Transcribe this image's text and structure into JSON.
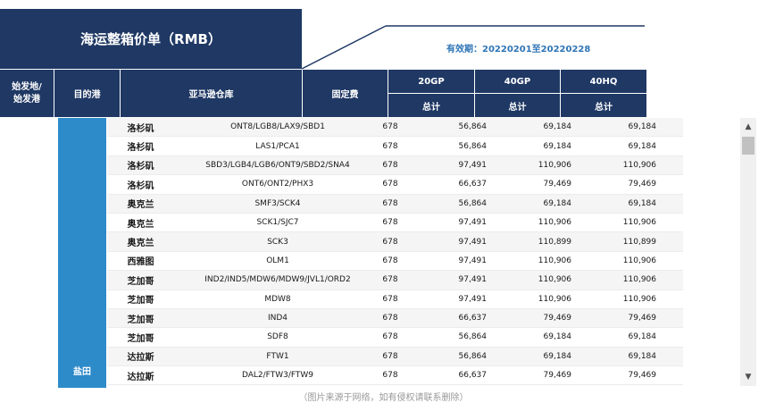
{
  "header": {
    "title": "海运整箱价单（RMB）",
    "validity": "有效期：20220201至20220228"
  },
  "columns": {
    "origin": "始发地/\n始发港",
    "dest": "目的港",
    "warehouse": "亚马逊仓库",
    "fixed": "固定费",
    "gp20": "20GP",
    "gp40": "40GP",
    "hq40": "40HQ",
    "total": "总计"
  },
  "origin_port": "盐田",
  "rows": [
    {
      "dest": "洛杉矶",
      "warehouse": "ONT8/LGB8/LAX9/SBD1",
      "fixed": "678",
      "gp20": "56,864",
      "gp40": "69,184",
      "hq40": "69,184"
    },
    {
      "dest": "洛杉矶",
      "warehouse": "LAS1/PCA1",
      "fixed": "678",
      "gp20": "56,864",
      "gp40": "69,184",
      "hq40": "69,184"
    },
    {
      "dest": "洛杉矶",
      "warehouse": "SBD3/LGB4/LGB6/ONT9/SBD2/SNA4",
      "fixed": "678",
      "gp20": "97,491",
      "gp40": "110,906",
      "hq40": "110,906"
    },
    {
      "dest": "洛杉矶",
      "warehouse": "ONT6/ONT2/PHX3",
      "fixed": "678",
      "gp20": "66,637",
      "gp40": "79,469",
      "hq40": "79,469"
    },
    {
      "dest": "奥克兰",
      "warehouse": "SMF3/SCK4",
      "fixed": "678",
      "gp20": "56,864",
      "gp40": "69,184",
      "hq40": "69,184"
    },
    {
      "dest": "奥克兰",
      "warehouse": "SCK1/SJC7",
      "fixed": "678",
      "gp20": "97,491",
      "gp40": "110,906",
      "hq40": "110,906"
    },
    {
      "dest": "奥克兰",
      "warehouse": "SCK3",
      "fixed": "678",
      "gp20": "97,491",
      "gp40": "110,899",
      "hq40": "110,899"
    },
    {
      "dest": "西雅图",
      "warehouse": "OLM1",
      "fixed": "678",
      "gp20": "97,491",
      "gp40": "110,906",
      "hq40": "110,906"
    },
    {
      "dest": "芝加哥",
      "warehouse": "IND2/IND5/MDW6/MDW9/JVL1/ORD2",
      "fixed": "678",
      "gp20": "97,491",
      "gp40": "110,906",
      "hq40": "110,906"
    },
    {
      "dest": "芝加哥",
      "warehouse": "MDW8",
      "fixed": "678",
      "gp20": "97,491",
      "gp40": "110,906",
      "hq40": "110,906"
    },
    {
      "dest": "芝加哥",
      "warehouse": "IND4",
      "fixed": "678",
      "gp20": "66,637",
      "gp40": "79,469",
      "hq40": "79,469"
    },
    {
      "dest": "芝加哥",
      "warehouse": "SDF8",
      "fixed": "678",
      "gp20": "56,864",
      "gp40": "69,184",
      "hq40": "69,184"
    },
    {
      "dest": "达拉斯",
      "warehouse": "FTW1",
      "fixed": "678",
      "gp20": "56,864",
      "gp40": "69,184",
      "hq40": "69,184"
    },
    {
      "dest": "达拉斯",
      "warehouse": "DAL2/FTW3/FTW9",
      "fixed": "678",
      "gp20": "66,637",
      "gp40": "79,469",
      "hq40": "79,469"
    }
  ],
  "scrollbar": {
    "up_icon": "triangle-up",
    "down_icon": "triangle-down"
  },
  "caption": "（图片来源于网络，如有侵权请联系删除）",
  "colors": {
    "header_navy": "#1f3864",
    "port_blue": "#2e8bc9",
    "validity_blue": "#2e75b6"
  }
}
